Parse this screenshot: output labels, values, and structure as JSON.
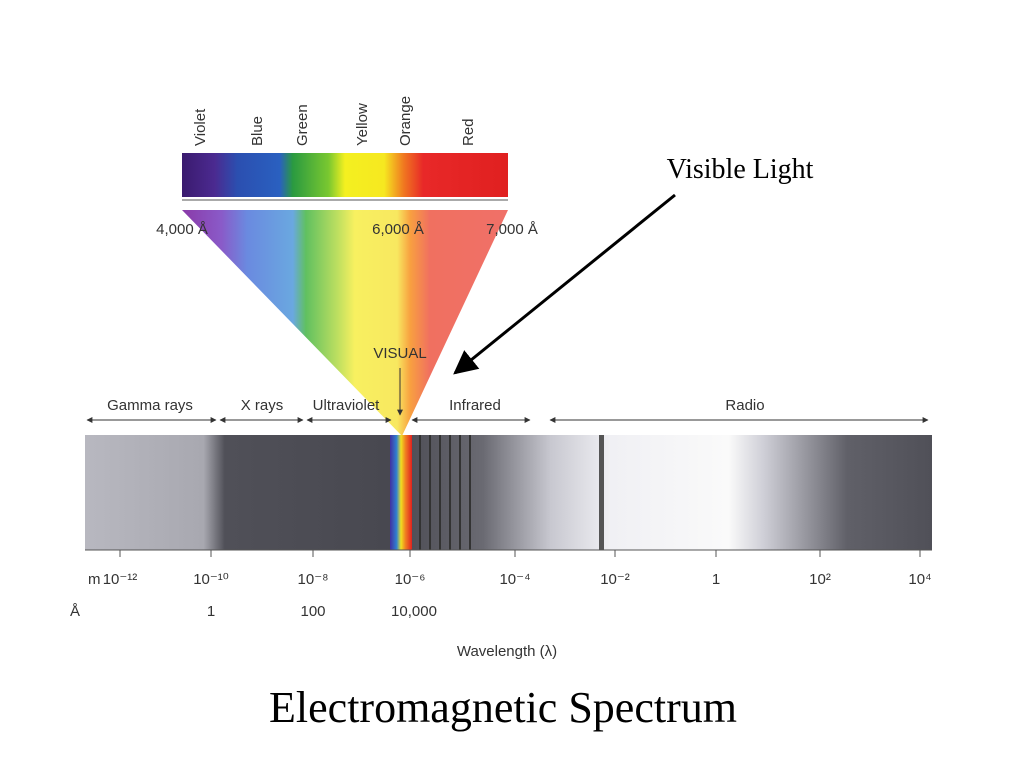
{
  "title": "Electromagnetic Spectrum",
  "callout": "Visible Light",
  "visible_colors": [
    "Violet",
    "Blue",
    "Green",
    "Yellow",
    "Orange",
    "Red"
  ],
  "visible_wavelengths": [
    "4,000 Å",
    "6,000 Å",
    "7,000 Å"
  ],
  "visual_label": "VISUAL",
  "bands": [
    "Gamma rays",
    "X rays",
    "Ultraviolet",
    "Infrared",
    "Radio"
  ],
  "meter_unit": "m",
  "meter_ticks": [
    "10⁻¹²",
    "10⁻¹⁰",
    "10⁻⁸",
    "10⁻⁶",
    "10⁻⁴",
    "10⁻²",
    "1",
    "10²",
    "10⁴"
  ],
  "angstrom_unit": "Å",
  "angstrom_ticks": [
    "1",
    "100",
    "10,000"
  ],
  "axis_label": "Wavelength (λ)"
}
